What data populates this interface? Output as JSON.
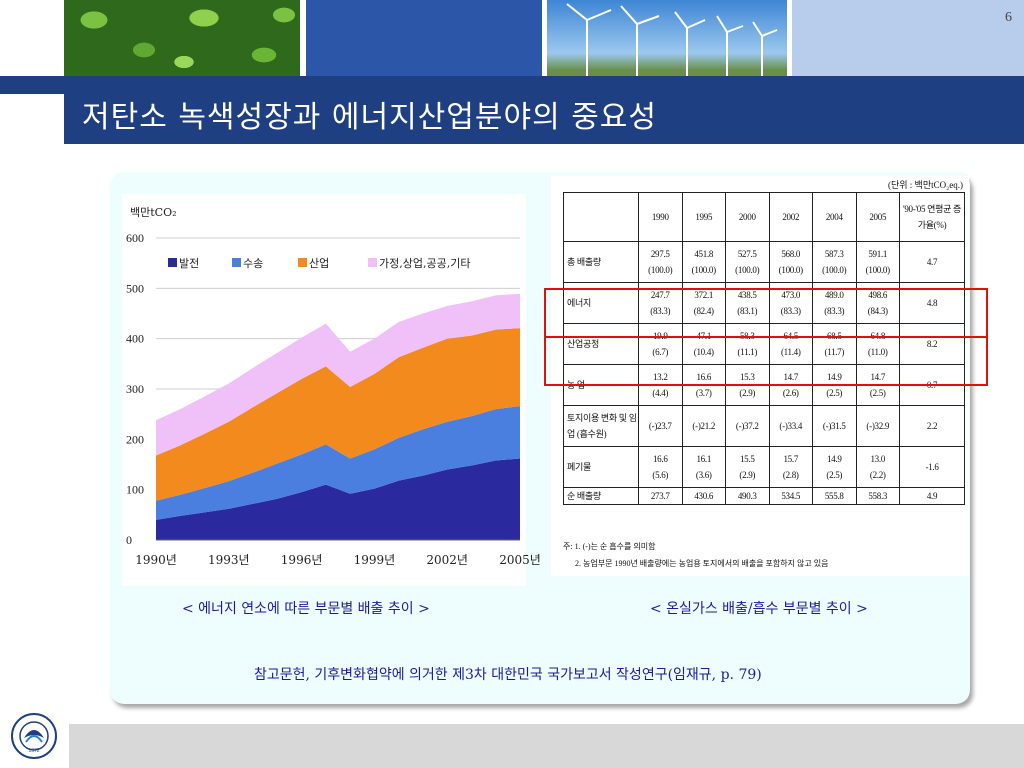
{
  "slide": {
    "page_number": "6",
    "title": "저탄소 녹색성장과 에너지산업분야의 중요성"
  },
  "chart_data": {
    "type": "area",
    "stacked": true,
    "yunit": "백만tCO₂",
    "ylim": [
      0,
      600
    ],
    "yticks": [
      "0",
      "100",
      "200",
      "300",
      "400",
      "500",
      "600"
    ],
    "x_tick_labels": [
      "1990년",
      "1993년",
      "1996년",
      "1999년",
      "2002년",
      "2005년"
    ],
    "x": [
      1990,
      1991,
      1992,
      1993,
      1994,
      1995,
      1996,
      1997,
      1998,
      1999,
      2000,
      2001,
      2002,
      2003,
      2004,
      2005
    ],
    "legend": [
      "발전",
      "수송",
      "산업",
      "가정,상업,공공,기타"
    ],
    "series": [
      {
        "name": "발전",
        "color": "#2a2a9e",
        "values": [
          40,
          48,
          55,
          62,
          72,
          82,
          95,
          110,
          92,
          102,
          118,
          128,
          140,
          148,
          158,
          162
        ]
      },
      {
        "name": "수송",
        "color": "#4a7fe0",
        "values": [
          38,
          42,
          48,
          55,
          62,
          70,
          75,
          80,
          70,
          78,
          85,
          92,
          95,
          98,
          102,
          104
        ]
      },
      {
        "name": "산업",
        "color": "#f28a1e",
        "values": [
          90,
          98,
          108,
          118,
          130,
          140,
          150,
          155,
          142,
          150,
          160,
          162,
          165,
          160,
          158,
          155
        ]
      },
      {
        "name": "가정,상업,공공,기타",
        "color": "#f0c0f8",
        "values": [
          70,
          72,
          74,
          76,
          78,
          80,
          82,
          85,
          70,
          70,
          70,
          68,
          65,
          68,
          68,
          68
        ]
      }
    ]
  },
  "table": {
    "unit_note": "(단위 : 백만tCO₂eq.)",
    "headers": [
      "",
      "1990",
      "1995",
      "2000",
      "2002",
      "2004",
      "2005",
      "'90-'05 연평균 증가율(%)"
    ],
    "rows": [
      {
        "label": "총 배출량",
        "values": [
          "297.5",
          "451.8",
          "527.5",
          "568.0",
          "587.3",
          "591.1"
        ],
        "shares": [
          "(100.0)",
          "(100.0)",
          "(100.0)",
          "(100.0)",
          "(100.0)",
          "(100.0)"
        ],
        "growth": "4.7"
      },
      {
        "label": "에너지",
        "values": [
          "247.7",
          "372.1",
          "438.5",
          "473.0",
          "489.0",
          "498.6"
        ],
        "shares": [
          "(83.3)",
          "(82.4)",
          "(83.1)",
          "(83.3)",
          "(83.3)",
          "(84.3)"
        ],
        "growth": "4.8"
      },
      {
        "label": "산업공정",
        "values": [
          "19.9",
          "47.1",
          "58.3",
          "64.5",
          "68.5",
          "64.8"
        ],
        "shares": [
          "(6.7)",
          "(10.4)",
          "(11.1)",
          "(11.4)",
          "(11.7)",
          "(11.0)"
        ],
        "growth": "8.2"
      },
      {
        "label": "농 업",
        "values": [
          "13.2",
          "16.6",
          "15.3",
          "14.7",
          "14.9",
          "14.7"
        ],
        "shares": [
          "(4.4)",
          "(3.7)",
          "(2.9)",
          "(2.6)",
          "(2.5)",
          "(2.5)"
        ],
        "growth": "0.7"
      },
      {
        "label": "토지이용 변화 및 임업 (흡수원)",
        "values": [
          "(-)23.7",
          "(-)21.2",
          "(-)37.2",
          "(-)33.4",
          "(-)31.5",
          "(-)32.9"
        ],
        "shares": [
          "",
          "",
          "",
          "",
          "",
          ""
        ],
        "growth": "2.2"
      },
      {
        "label": "폐기물",
        "values": [
          "16.6",
          "16.1",
          "15.5",
          "15.7",
          "14.9",
          "13.0"
        ],
        "shares": [
          "(5.6)",
          "(3.6)",
          "(2.9)",
          "(2.8)",
          "(2.5)",
          "(2.2)"
        ],
        "growth": "-1.6"
      },
      {
        "label": "순 배출량",
        "values": [
          "273.7",
          "430.6",
          "490.3",
          "534.5",
          "555.8",
          "558.3"
        ],
        "shares": [
          "",
          "",
          "",
          "",
          "",
          ""
        ],
        "growth": "4.9"
      }
    ],
    "note1": "주: 1. (-)는 순 흡수를 의미함",
    "note2": "2. 농업부문 1990년 배출량에는 농업용 토지에서의 배출을 포함하지 않고 있음"
  },
  "captions": {
    "left": "< 에너지 연소에 따른 부문별 배출 추이 >",
    "right": "< 온실가스 배출/흡수 부문별 추이 >",
    "reference": "참고문헌, 기후변화협약에 의거한 제3차 대한민국 국가보고서 작성연구(임재규, p. 79)"
  },
  "logo": {
    "text": "1972"
  }
}
